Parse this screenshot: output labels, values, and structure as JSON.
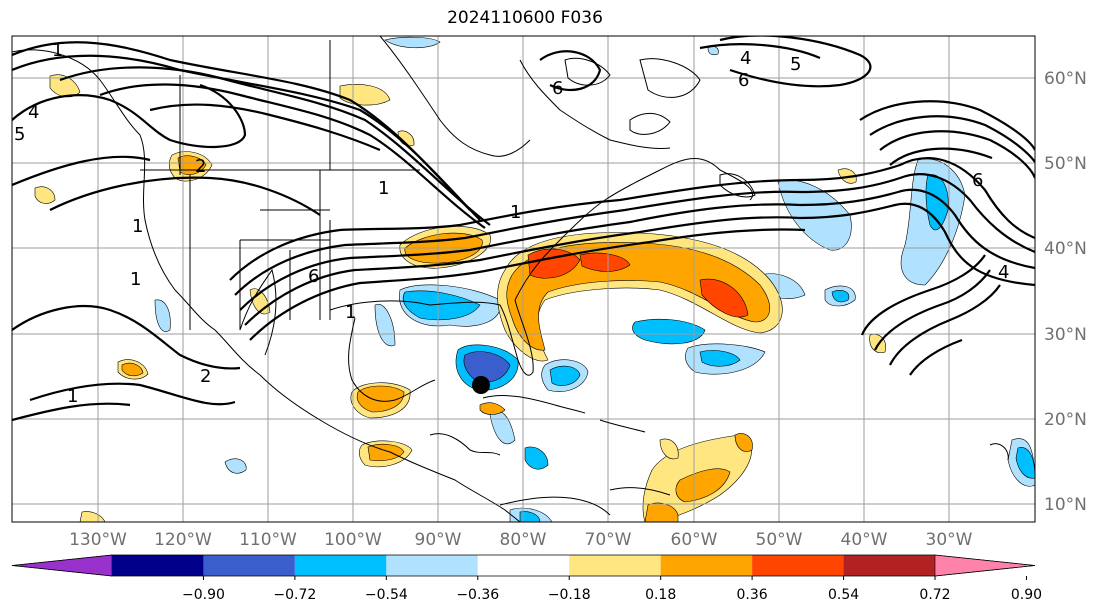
{
  "title": "2024110600 F036",
  "map": {
    "lat_labels": [
      "60°N",
      "50°N",
      "40°N",
      "30°N",
      "20°N",
      "10°N"
    ],
    "lon_labels": [
      "130°W",
      "120°W",
      "110°W",
      "100°W",
      "90°W",
      "80°W",
      "70°W",
      "60°W",
      "50°W",
      "40°W",
      "30°W"
    ],
    "contour_labels": [
      "1",
      "4",
      "5",
      "2",
      "1",
      "1",
      "1",
      "1",
      "1",
      "2",
      "1",
      "5",
      "4",
      "6",
      "6",
      "6",
      "6",
      "4"
    ],
    "marker": "storm-center-dot"
  },
  "colorbar": {
    "ticks": [
      "−0.90",
      "−0.72",
      "−0.54",
      "−0.36",
      "−0.18",
      "0.18",
      "0.36",
      "0.54",
      "0.72",
      "0.90"
    ],
    "colors": [
      "#9932cc",
      "#00008b",
      "#3a5fcd",
      "#00bfff",
      "#b0e2ff",
      "#ffffff",
      "#ffe680",
      "#ffa500",
      "#ff4500",
      "#b22222",
      "#ff82ab"
    ]
  },
  "fill_colors": {
    "neg_light": "#b0e2ff",
    "neg_mid": "#00bfff",
    "neg_dark": "#3a5fcd",
    "pos_light": "#ffe680",
    "pos_mid": "#ffa500",
    "pos_dark": "#ff4500"
  }
}
